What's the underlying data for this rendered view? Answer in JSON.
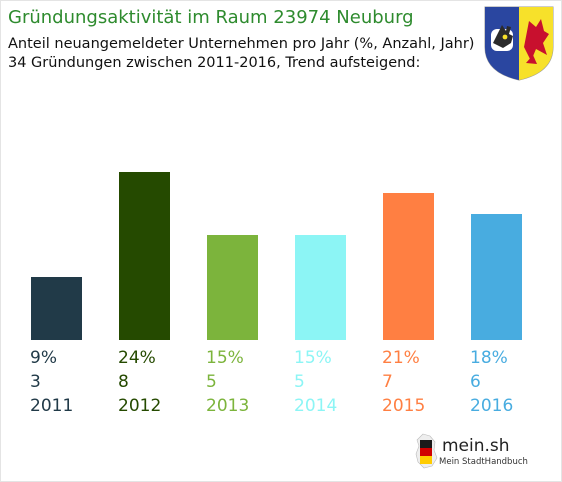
{
  "header": {
    "title": "Gründungsaktivität im Raum 23974 Neuburg",
    "subtitle_line1": "Anteil neuangemeldeter Unternehmen pro Jahr (%, Anzahl, Jahr)",
    "subtitle_line2": "34 Gründungen zwischen 2011-2016, Trend aufsteigend:",
    "title_color": "#2e8b2e"
  },
  "crest": {
    "icon": "coat-of-arms-icon",
    "colors": {
      "left": "#2a46a0",
      "right": "#f7e12a",
      "bull": "#2b2b2b",
      "griffin": "#c8102e"
    }
  },
  "chart_data": {
    "type": "bar",
    "title": "Gründungsaktivität im Raum 23974 Neuburg",
    "categories": [
      "2011",
      "2012",
      "2013",
      "2014",
      "2015",
      "2016"
    ],
    "series": [
      {
        "values": [
          9,
          24,
          15,
          15,
          21,
          18
        ]
      }
    ],
    "labels": {
      "percent": [
        "9%",
        "24%",
        "15%",
        "15%",
        "21%",
        "18%"
      ],
      "count": [
        "3",
        "8",
        "5",
        "5",
        "7",
        "6"
      ]
    },
    "colors": [
      "#213a48",
      "#254a00",
      "#7cb43c",
      "#8cf5f5",
      "#ff7f42",
      "#48ace0"
    ],
    "ylim": [
      0,
      24
    ],
    "grid": false,
    "legend": "none"
  },
  "logo": {
    "name": "mein.sh",
    "tagline": "Mein StadtHandbuch",
    "icon": "germany-map-icon"
  }
}
